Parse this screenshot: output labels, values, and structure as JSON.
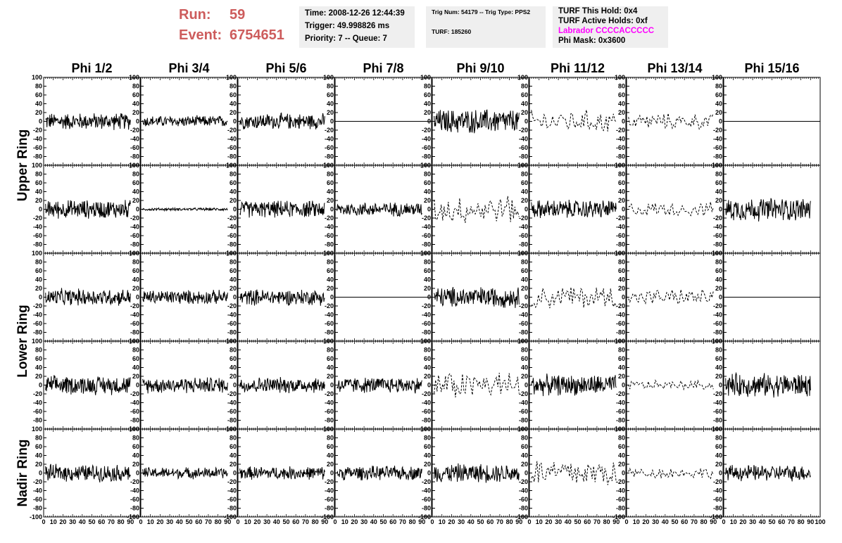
{
  "header": {
    "run_label": "Run:",
    "run_value": "59",
    "event_label": "Event:",
    "event_value": "6754651"
  },
  "info": {
    "time": "Time: 2008-12-26 12:44:39",
    "trigger": "Trigger: 49.998826 ms",
    "priority": "Priority: 7 -- Queue: 7",
    "trig_num": "Trig Num: 54179 -- Trig Type: PPS2",
    "turf": "TURF: 185260",
    "turf_this_hold": "TURF This Hold: 0x4",
    "turf_active_holds": "TURF Active Holds: 0xf",
    "labrador": "Labrador CCCCACCCCC",
    "phi_mask": "Phi Mask: 0x3600"
  },
  "colors": {
    "run_event": "#cd5c5c",
    "labrador": "#ff00ff",
    "info_box": "#efefef",
    "trace": "#000000"
  },
  "chart_data": {
    "type": "line",
    "title": "",
    "columns": [
      "Phi 1/2",
      "Phi 3/4",
      "Phi 5/6",
      "Phi 7/8",
      "Phi 9/10",
      "Phi 11/12",
      "Phi 13/14",
      "Phi 15/16"
    ],
    "ring_labels": [
      {
        "label": "Upper Ring",
        "rows": [
          0,
          1
        ]
      },
      {
        "label": "Lower Ring",
        "rows": [
          2,
          3
        ]
      },
      {
        "label": "Nadir Ring",
        "rows": [
          4
        ]
      }
    ],
    "xlim": [
      0,
      100
    ],
    "ylim": [
      -100,
      100
    ],
    "y_ticks": [
      -100,
      -80,
      -60,
      -40,
      -20,
      0,
      20,
      40,
      60,
      80,
      100
    ],
    "y_tick_labels": [
      "-100",
      "-80",
      "-60",
      "-40",
      "-20",
      "0",
      "20",
      "40",
      "60",
      "80",
      "100"
    ],
    "x_ticks": [
      0,
      10,
      20,
      30,
      40,
      50,
      60,
      70,
      80,
      90
    ],
    "x_tick_labels": [
      "0",
      "10",
      "20",
      "30",
      "40",
      "50",
      "60",
      "70",
      "80",
      "90"
    ],
    "x_last_tick_label": "100",
    "panels": [
      [
        {
          "style": "solid",
          "amp": 18
        },
        {
          "style": "solid",
          "amp": 12
        },
        {
          "style": "solid",
          "amp": 17
        },
        {
          "style": "flat",
          "amp": 0
        },
        {
          "style": "solid",
          "amp": 26
        },
        {
          "style": "dashed",
          "amp": 24
        },
        {
          "style": "dashed",
          "amp": 17
        },
        {
          "style": "flat",
          "amp": 0
        }
      ],
      [
        {
          "style": "solid",
          "amp": 20
        },
        {
          "style": "solid",
          "amp": 3
        },
        {
          "style": "solid",
          "amp": 18
        },
        {
          "style": "solid",
          "amp": 15
        },
        {
          "style": "dashed",
          "amp": 30
        },
        {
          "style": "solid",
          "amp": 20
        },
        {
          "style": "dashed",
          "amp": 15
        },
        {
          "style": "solid",
          "amp": 25
        }
      ],
      [
        {
          "style": "solid",
          "amp": 18
        },
        {
          "style": "solid",
          "amp": 15
        },
        {
          "style": "solid",
          "amp": 17
        },
        {
          "style": "flat",
          "amp": 0
        },
        {
          "style": "solid",
          "amp": 22
        },
        {
          "style": "dashed",
          "amp": 26
        },
        {
          "style": "dashed",
          "amp": 17
        },
        {
          "style": "flat",
          "amp": 0
        }
      ],
      [
        {
          "style": "solid",
          "amp": 20
        },
        {
          "style": "solid",
          "amp": 17
        },
        {
          "style": "solid",
          "amp": 17
        },
        {
          "style": "solid",
          "amp": 17
        },
        {
          "style": "dashed",
          "amp": 30
        },
        {
          "style": "solid",
          "amp": 22
        },
        {
          "style": "dashed",
          "amp": 10
        },
        {
          "style": "solid",
          "amp": 25
        }
      ],
      [
        {
          "style": "solid",
          "amp": 18
        },
        {
          "style": "solid",
          "amp": 12
        },
        {
          "style": "solid",
          "amp": 14
        },
        {
          "style": "solid",
          "amp": 15
        },
        {
          "style": "solid",
          "amp": 20
        },
        {
          "style": "dashed",
          "amp": 32
        },
        {
          "style": "dashed",
          "amp": 12
        },
        {
          "style": "solid",
          "amp": 17
        }
      ]
    ]
  }
}
